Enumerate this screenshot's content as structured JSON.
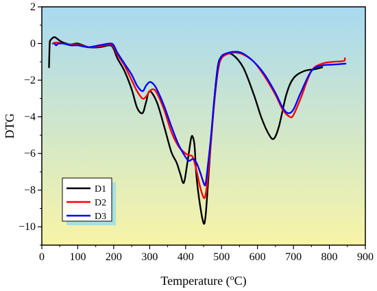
{
  "chart_data": {
    "type": "line",
    "title": "",
    "xlabel": "Temperature (",
    "xlabel_sup": "o",
    "xlabel_tail": "C)",
    "ylabel": "DTG",
    "xlim": [
      0,
      900
    ],
    "ylim": [
      -11,
      2
    ],
    "xticks": [
      0,
      100,
      200,
      300,
      400,
      500,
      600,
      700,
      800,
      900
    ],
    "yticks": [
      2,
      0,
      -2,
      -4,
      -6,
      -8,
      -10
    ],
    "grid": false,
    "background_gradient": [
      "#a8d9f0",
      "#f8f4a6"
    ],
    "legend_position": "bottom-left",
    "series": [
      {
        "name": "D1",
        "color": "#000000",
        "x": [
          20,
          22,
          25,
          30,
          35,
          40,
          50,
          60,
          80,
          100,
          130,
          160,
          190,
          200,
          210,
          230,
          250,
          265,
          280,
          290,
          300,
          320,
          340,
          360,
          375,
          385,
          395,
          405,
          415,
          420,
          425,
          430,
          440,
          450,
          455,
          460,
          470,
          480,
          490,
          500,
          510,
          530,
          560,
          590,
          610,
          630,
          645,
          660,
          680,
          700,
          730,
          760,
          780
        ],
        "y": [
          -1.3,
          0.0,
          0.2,
          0.3,
          0.35,
          0.3,
          0.15,
          0.05,
          -0.05,
          0.0,
          -0.2,
          -0.2,
          -0.1,
          -0.3,
          -0.8,
          -1.5,
          -2.5,
          -3.5,
          -3.8,
          -3.2,
          -2.6,
          -3.2,
          -4.5,
          -5.9,
          -6.5,
          -7.1,
          -7.6,
          -6.5,
          -5.2,
          -5.1,
          -5.6,
          -7.2,
          -8.8,
          -9.8,
          -9.5,
          -8.3,
          -5.5,
          -3.0,
          -1.2,
          -0.7,
          -0.6,
          -0.6,
          -1.3,
          -2.8,
          -4.0,
          -4.9,
          -5.2,
          -4.5,
          -2.8,
          -1.9,
          -1.5,
          -1.4,
          -1.3
        ]
      },
      {
        "name": "D2",
        "color": "#ff0000",
        "x": [
          30,
          40,
          60,
          80,
          100,
          130,
          160,
          190,
          200,
          210,
          230,
          250,
          265,
          280,
          290,
          300,
          310,
          320,
          340,
          360,
          380,
          400,
          410,
          420,
          430,
          440,
          450,
          455,
          460,
          470,
          480,
          490,
          500,
          520,
          540,
          560,
          590,
          620,
          650,
          670,
          690,
          700,
          720,
          750,
          780,
          810,
          840,
          843
        ],
        "y": [
          0.0,
          0.05,
          0.0,
          -0.05,
          -0.05,
          -0.2,
          -0.15,
          -0.05,
          -0.2,
          -0.6,
          -1.2,
          -2.0,
          -2.6,
          -3.0,
          -2.9,
          -2.6,
          -2.5,
          -2.7,
          -3.6,
          -4.8,
          -5.6,
          -6.0,
          -6.1,
          -6.2,
          -6.9,
          -7.8,
          -8.4,
          -8.3,
          -7.6,
          -5.5,
          -3.2,
          -1.5,
          -0.8,
          -0.55,
          -0.5,
          -0.6,
          -1.0,
          -1.8,
          -2.8,
          -3.6,
          -4.0,
          -3.9,
          -3.0,
          -1.5,
          -1.1,
          -1.0,
          -0.95,
          -0.8
        ]
      },
      {
        "name": "D3",
        "color": "#0000ff",
        "x": [
          35,
          40,
          45,
          50,
          60,
          80,
          100,
          130,
          160,
          190,
          200,
          210,
          230,
          250,
          265,
          280,
          290,
          300,
          310,
          320,
          340,
          360,
          380,
          400,
          410,
          420,
          430,
          440,
          450,
          455,
          460,
          470,
          480,
          490,
          500,
          520,
          540,
          560,
          590,
          620,
          650,
          670,
          685,
          700,
          720,
          750,
          780,
          810,
          845
        ],
        "y": [
          0.0,
          -0.1,
          0.0,
          0.0,
          0.0,
          -0.1,
          -0.1,
          -0.2,
          -0.1,
          0.0,
          -0.1,
          -0.5,
          -1.1,
          -1.7,
          -2.3,
          -2.6,
          -2.3,
          -2.1,
          -2.2,
          -2.5,
          -3.4,
          -4.5,
          -5.5,
          -6.2,
          -6.4,
          -6.3,
          -6.5,
          -7.0,
          -7.6,
          -7.7,
          -7.0,
          -5.2,
          -3.0,
          -1.3,
          -0.7,
          -0.5,
          -0.45,
          -0.55,
          -1.0,
          -1.7,
          -2.7,
          -3.5,
          -3.8,
          -3.6,
          -2.7,
          -1.5,
          -1.2,
          -1.15,
          -1.1
        ]
      }
    ]
  }
}
